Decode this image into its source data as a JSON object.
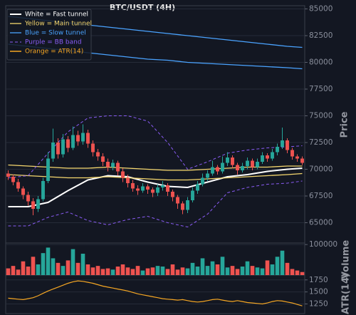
{
  "chart_data": [
    {
      "type": "candlestick",
      "title": "BTC/USDT (4H)",
      "ylabel": "Price",
      "ylim": [
        63100,
        85300
      ],
      "yticks": [
        65000,
        67500,
        70000,
        72500,
        75000,
        77500,
        80000,
        82500,
        85000
      ],
      "grid": true,
      "up_color": "#26a69a",
      "down_color": "#ef5350",
      "open": [
        69600,
        69300,
        68800,
        68200,
        67600,
        67000,
        66300,
        67200,
        68900,
        71000,
        72500,
        71400,
        72800,
        72000,
        73200,
        72600,
        73400,
        72400,
        71600,
        71200,
        70700,
        70200,
        70600,
        69800,
        69200,
        68700,
        68200,
        68000,
        68400,
        68100,
        67800,
        68300,
        68500,
        67900,
        67400,
        66800,
        66200,
        67100,
        68000,
        68600,
        69200,
        69600,
        70200,
        69800,
        70600,
        71100,
        70400,
        69900,
        70300,
        70800,
        70200,
        70700,
        71300,
        71000,
        71600,
        72100,
        72700,
        71800,
        71200,
        71000
      ],
      "high": [
        69900,
        69500,
        69100,
        68400,
        67900,
        67300,
        67500,
        69200,
        71600,
        73800,
        72900,
        73300,
        73100,
        74000,
        73600,
        74200,
        73700,
        72700,
        71900,
        71500,
        71000,
        70900,
        70800,
        70100,
        69500,
        69000,
        68500,
        68700,
        68600,
        68300,
        68600,
        68900,
        68700,
        68100,
        67600,
        67000,
        67400,
        68300,
        68900,
        69600,
        69900,
        70800,
        70400,
        71200,
        71600,
        71300,
        70600,
        70600,
        71100,
        71000,
        71000,
        71600,
        71500,
        71900,
        72400,
        73900,
        72900,
        72000,
        71400,
        71200
      ],
      "low": [
        69000,
        68500,
        67900,
        67200,
        66600,
        65700,
        66000,
        67000,
        68700,
        70700,
        71000,
        71100,
        71600,
        71800,
        72200,
        72300,
        72000,
        71200,
        70800,
        70300,
        69800,
        69900,
        69400,
        68800,
        68300,
        67900,
        67600,
        67800,
        67700,
        67400,
        67500,
        68000,
        67500,
        67000,
        66300,
        65800,
        65900,
        66900,
        67700,
        68400,
        68900,
        69400,
        69500,
        69600,
        70300,
        70100,
        69500,
        69700,
        70000,
        69900,
        70000,
        70500,
        70700,
        70800,
        71300,
        71900,
        71500,
        70900,
        70700,
        70400
      ],
      "close": [
        69300,
        68800,
        68200,
        67600,
        67000,
        66300,
        67200,
        68900,
        71000,
        72500,
        71400,
        72800,
        72000,
        73200,
        72600,
        73400,
        72400,
        71600,
        71200,
        70700,
        70200,
        70600,
        69800,
        69200,
        68700,
        68200,
        68000,
        68400,
        68100,
        67800,
        68300,
        68500,
        67900,
        67400,
        66800,
        66200,
        67100,
        68000,
        68600,
        69200,
        69600,
        70200,
        69800,
        70600,
        71100,
        70400,
        69900,
        70300,
        70800,
        70200,
        70700,
        71300,
        71000,
        71600,
        72100,
        72700,
        71800,
        71200,
        71000,
        70600
      ],
      "series": [
        {
          "name": "White = Fast tunnel",
          "color": "#ffffff",
          "width": 2,
          "x": [
            0,
            4,
            8,
            12,
            16,
            20,
            24,
            28,
            32,
            36,
            40,
            44,
            48,
            52,
            56,
            59
          ],
          "values": [
            66500,
            66500,
            66900,
            68000,
            69000,
            69400,
            69300,
            68800,
            68400,
            68300,
            68800,
            69300,
            69500,
            69800,
            70000,
            70100
          ]
        },
        {
          "name": "Yellow = Main tunnel",
          "color": "#f5d76e",
          "width": 1.3,
          "x": [
            0,
            4,
            8,
            12,
            16,
            20,
            24,
            28,
            32,
            36,
            40,
            44,
            48,
            52,
            56,
            59
          ],
          "values": [
            70400,
            70300,
            70200,
            70100,
            70100,
            70200,
            70100,
            70000,
            69900,
            69900,
            70000,
            70100,
            70200,
            70200,
            70300,
            70300
          ],
          "lower": [
            69500,
            69400,
            69300,
            69200,
            69200,
            69300,
            69200,
            69100,
            69000,
            69000,
            69100,
            69200,
            69300,
            69400,
            69500,
            69600
          ]
        },
        {
          "name": "Blue = Slow tunnel",
          "color": "#4aa3ff",
          "width": 1.3,
          "x": [
            0,
            4,
            8,
            12,
            16,
            20,
            24,
            28,
            32,
            36,
            40,
            44,
            48,
            52,
            56,
            59
          ],
          "values": [
            84300,
            84100,
            83900,
            83700,
            83500,
            83300,
            83100,
            82900,
            82700,
            82500,
            82300,
            82100,
            81900,
            81700,
            81500,
            81400
          ],
          "lower": [
            81700,
            81500,
            81300,
            81100,
            80900,
            80700,
            80500,
            80300,
            80200,
            80000,
            79900,
            79800,
            79700,
            79600,
            79500,
            79400
          ]
        },
        {
          "name": "Purple = BB band",
          "color": "#8a5cf5",
          "width": 1,
          "dash": true,
          "x": [
            0,
            4,
            8,
            12,
            16,
            20,
            24,
            28,
            32,
            36,
            40,
            44,
            48,
            52,
            56,
            59
          ],
          "values": [
            69200,
            69400,
            71500,
            73500,
            74800,
            75000,
            75000,
            74500,
            72500,
            70000,
            70700,
            71500,
            71800,
            72000,
            72100,
            72200
          ],
          "lower": [
            64700,
            64700,
            65500,
            66000,
            65200,
            64800,
            65300,
            65600,
            65000,
            64600,
            65800,
            67800,
            68300,
            68600,
            68700,
            68900
          ]
        }
      ]
    },
    {
      "type": "bar",
      "ylabel": "Volume",
      "ylim": [
        0,
        105000
      ],
      "yticks": [
        100000
      ],
      "values": [
        22000,
        30000,
        18000,
        45000,
        28000,
        60000,
        35000,
        72000,
        90000,
        55000,
        40000,
        30000,
        48000,
        85000,
        40000,
        70000,
        35000,
        25000,
        30000,
        20000,
        22000,
        18000,
        28000,
        35000,
        25000,
        20000,
        30000,
        15000,
        22000,
        25000,
        30000,
        28000,
        20000,
        35000,
        18000,
        25000,
        22000,
        40000,
        28000,
        55000,
        30000,
        45000,
        35000,
        60000,
        25000,
        30000,
        20000,
        28000,
        45000,
        30000,
        25000,
        22000,
        48000,
        35000,
        60000,
        80000,
        40000,
        20000,
        15000,
        10000
      ]
    },
    {
      "type": "line",
      "ylabel": "ATR(14)",
      "ylim": [
        1050,
        1850
      ],
      "yticks": [
        1250,
        1500,
        1750
      ],
      "series": [
        {
          "name": "Orange = ATR(14)",
          "color": "#f5a623",
          "values": [
            1370,
            1360,
            1350,
            1340,
            1360,
            1380,
            1420,
            1470,
            1520,
            1560,
            1600,
            1640,
            1680,
            1710,
            1730,
            1720,
            1700,
            1680,
            1650,
            1620,
            1600,
            1580,
            1560,
            1540,
            1520,
            1490,
            1460,
            1440,
            1420,
            1400,
            1380,
            1360,
            1350,
            1340,
            1330,
            1340,
            1320,
            1300,
            1290,
            1300,
            1320,
            1340,
            1350,
            1330,
            1310,
            1300,
            1320,
            1300,
            1280,
            1270,
            1260,
            1250,
            1270,
            1300,
            1320,
            1310,
            1290,
            1270,
            1240,
            1210
          ]
        }
      ]
    }
  ]
}
